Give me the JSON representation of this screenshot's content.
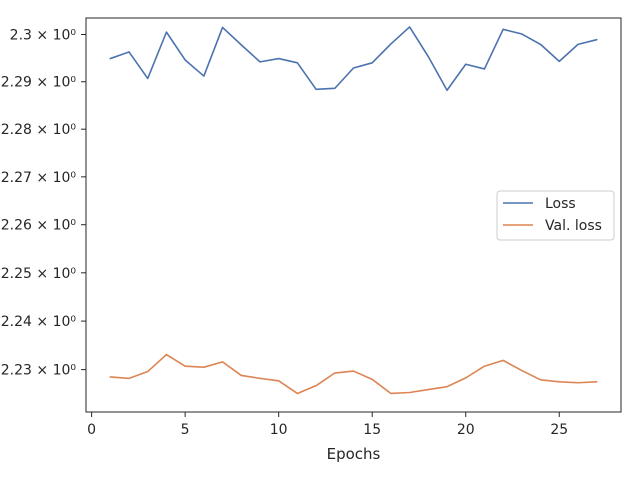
{
  "chart_data": {
    "type": "line",
    "title": "",
    "xlabel": "Epochs",
    "ylabel": "",
    "y_scale": "log",
    "grid": false,
    "legend_position": "center-right",
    "xlim": [
      -0.3,
      28.3
    ],
    "ylim": [
      2.2213,
      2.3035
    ],
    "x_ticks": [
      0,
      5,
      10,
      15,
      20,
      25
    ],
    "x_tick_labels": [
      "0",
      "5",
      "10",
      "15",
      "20",
      "25"
    ],
    "y_ticks": [
      2.23,
      2.24,
      2.25,
      2.26,
      2.27,
      2.28,
      2.29,
      2.3
    ],
    "y_tick_labels": [
      "2.23 × 10⁰",
      "2.24 × 10⁰",
      "2.25 × 10⁰",
      "2.26 × 10⁰",
      "2.27 × 10⁰",
      "2.28 × 10⁰",
      "2.29 × 10⁰",
      "2.3 × 10⁰"
    ],
    "x": [
      1,
      2,
      3,
      4,
      5,
      6,
      7,
      8,
      9,
      10,
      11,
      12,
      13,
      14,
      15,
      16,
      17,
      18,
      19,
      20,
      21,
      22,
      23,
      24,
      25,
      26,
      27
    ],
    "series": [
      {
        "name": "Loss",
        "color": "#4c72b0",
        "values": [
          2.2949,
          2.2963,
          2.2907,
          2.3005,
          2.2946,
          2.2912,
          2.3015,
          2.2978,
          2.2942,
          2.2949,
          2.294,
          2.2884,
          2.2886,
          2.2929,
          2.294,
          2.298,
          2.3016,
          2.2953,
          2.2882,
          2.2937,
          2.2927,
          2.3011,
          2.3001,
          2.2979,
          2.2943,
          2.2979,
          2.2989
        ]
      },
      {
        "name": "Val. loss",
        "color": "#dd8452",
        "values": [
          2.2285,
          2.2282,
          2.2296,
          2.2331,
          2.2307,
          2.2305,
          2.2316,
          2.2288,
          2.2282,
          2.2277,
          2.2251,
          2.2267,
          2.2293,
          2.2297,
          2.228,
          2.2251,
          2.2253,
          2.2259,
          2.2265,
          2.2283,
          2.2307,
          2.2319,
          2.2298,
          2.2279,
          2.2275,
          2.2273,
          2.2275
        ]
      }
    ]
  }
}
